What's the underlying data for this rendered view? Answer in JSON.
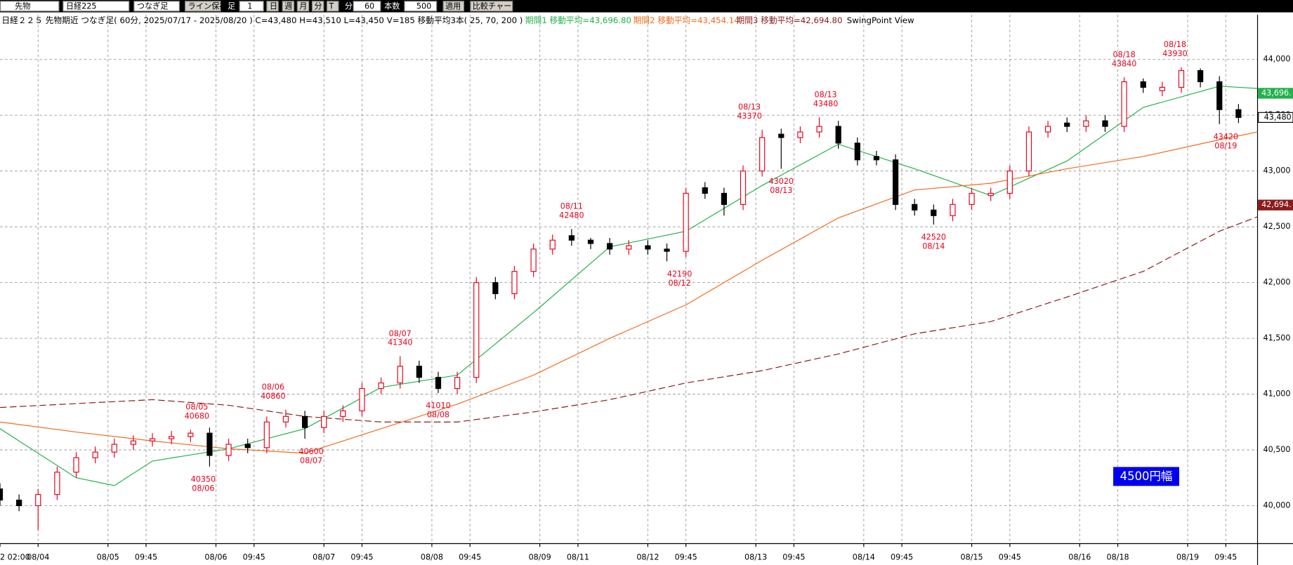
{
  "toolbar": {
    "items": [
      "先物",
      "日経225",
      "つなぎ足",
      "ライン保存",
      "足",
      "1",
      "日",
      "週",
      "月",
      "分",
      "T",
      "分",
      "60",
      "本数",
      "500",
      "適用",
      "比較チャート"
    ]
  },
  "chart_data": {
    "type": "candlestick",
    "header": [
      {
        "text": "日経２２５ 先物期近 つなぎ足( 60分, 2025/07/17 - 2025/08/20 )  C=43,480 H=43,510 L=43,450 V=185   移動平均3本( 25, 70, 200 )",
        "color": "#000000"
      },
      {
        "text": "期間1 移動平均=43,696.80",
        "color": "#22b14c"
      },
      {
        "text": "期間2 移動平均=43,454.14",
        "color": "#f26b1d"
      },
      {
        "text": "期間3 移動平均=42,694.80",
        "color": "#8b1a1a"
      },
      {
        "text": "SwingPoint View",
        "color": "#000000"
      }
    ],
    "xlim": [
      0,
      198
    ],
    "ylim": [
      39660,
      44400
    ],
    "grid": true,
    "xticks": [
      {
        "value": 0,
        "label": "2 02:00"
      },
      {
        "value": 6,
        "label": "08/04"
      },
      {
        "value": 17,
        "label": "08/05"
      },
      {
        "value": 23,
        "label": "09:45"
      },
      {
        "value": 34,
        "label": "08/06"
      },
      {
        "value": 40,
        "label": "09:45"
      },
      {
        "value": 51,
        "label": "08/07"
      },
      {
        "value": 57,
        "label": "09:45"
      },
      {
        "value": 68,
        "label": "08/08"
      },
      {
        "value": 74,
        "label": "09:45"
      },
      {
        "value": 85,
        "label": "08/09"
      },
      {
        "value": 91,
        "label": "08/11"
      },
      {
        "value": 102,
        "label": "08/12"
      },
      {
        "value": 108,
        "label": "09:45"
      },
      {
        "value": 119,
        "label": "08/13"
      },
      {
        "value": 125,
        "label": "09:45"
      },
      {
        "value": 136,
        "label": "08/14"
      },
      {
        "value": 142,
        "label": "09:45"
      },
      {
        "value": 153,
        "label": "08/15"
      },
      {
        "value": 159,
        "label": "09:45"
      },
      {
        "value": 170,
        "label": "08/16"
      },
      {
        "value": 176,
        "label": "08/18"
      },
      {
        "value": 187,
        "label": "08/19"
      },
      {
        "value": 193,
        "label": "09:45"
      }
    ],
    "yticks": [
      {
        "value": 40000,
        "label": "40,000"
      },
      {
        "value": 40500,
        "label": "40,500"
      },
      {
        "value": 41000,
        "label": "41,000"
      },
      {
        "value": 41500,
        "label": "41,500"
      },
      {
        "value": 42000,
        "label": "42,000"
      },
      {
        "value": 42500,
        "label": "42,500"
      },
      {
        "value": 43000,
        "label": "43,000"
      },
      {
        "value": 43500,
        "label": "43,500"
      },
      {
        "value": 44000,
        "label": "44,000"
      }
    ],
    "up_color": "#e8001c",
    "down_color": "#000000",
    "candles": {
      "x": [
        0,
        3,
        6,
        9,
        12,
        15,
        18,
        21,
        24,
        27,
        30,
        33,
        36,
        39,
        42,
        45,
        48,
        51,
        54,
        57,
        60,
        63,
        66,
        69,
        72,
        75,
        78,
        81,
        84,
        87,
        90,
        93,
        96,
        99,
        102,
        105,
        108,
        111,
        114,
        117,
        120,
        123,
        126,
        129,
        132,
        135,
        138,
        141,
        144,
        147,
        150,
        153,
        156,
        159,
        162,
        165,
        168,
        171,
        174,
        177,
        180,
        183,
        186,
        189,
        192,
        195
      ],
      "open": [
        40150,
        40050,
        40000,
        40100,
        40300,
        40430,
        40480,
        40550,
        40580,
        40600,
        40620,
        40650,
        40450,
        40550,
        40520,
        40750,
        40800,
        40700,
        40800,
        40850,
        41050,
        41100,
        41250,
        41150,
        41050,
        41150,
        42000,
        41900,
        42100,
        42300,
        42420,
        42380,
        42350,
        42300,
        42330,
        42300,
        42280,
        42850,
        42800,
        42700,
        43000,
        43330,
        43300,
        43350,
        43400,
        43250,
        43130,
        43100,
        42700,
        42650,
        42600,
        42700,
        42780,
        42800,
        43000,
        43350,
        43430,
        43400,
        43450,
        43400,
        43800,
        43720,
        43750,
        43900,
        43800,
        43550
      ],
      "high": [
        40200,
        40100,
        40150,
        40350,
        40480,
        40530,
        40600,
        40630,
        40650,
        40670,
        40680,
        40700,
        40600,
        40600,
        40800,
        40860,
        40850,
        40850,
        40900,
        41100,
        41150,
        41340,
        41300,
        41200,
        41200,
        42050,
        42050,
        42150,
        42350,
        42430,
        42480,
        42400,
        42400,
        42380,
        42380,
        42350,
        42850,
        42900,
        42850,
        43050,
        43370,
        43380,
        43400,
        43480,
        43450,
        43300,
        43180,
        43150,
        42750,
        42700,
        42750,
        42850,
        42850,
        43050,
        43400,
        43450,
        43480,
        43500,
        43500,
        43840,
        43830,
        43800,
        43930,
        43920,
        43850,
        43600
      ],
      "low": [
        40000,
        39950,
        39780,
        40050,
        40250,
        40380,
        40430,
        40500,
        40530,
        40550,
        40570,
        40350,
        40400,
        40470,
        40470,
        40700,
        40600,
        40650,
        40750,
        40800,
        41000,
        41050,
        41100,
        41010,
        41000,
        41100,
        41850,
        41850,
        42050,
        42250,
        42330,
        42300,
        42250,
        42250,
        42250,
        42190,
        42230,
        42750,
        42600,
        42650,
        42950,
        43020,
        43250,
        43300,
        43200,
        43050,
        43050,
        42650,
        42600,
        42520,
        42550,
        42650,
        42730,
        42750,
        42950,
        43300,
        43350,
        43350,
        43350,
        43350,
        43700,
        43670,
        43700,
        43750,
        43420,
        43430
      ],
      "close": [
        40050,
        40000,
        40100,
        40300,
        40430,
        40480,
        40550,
        40580,
        40600,
        40620,
        40650,
        40450,
        40550,
        40520,
        40750,
        40800,
        40700,
        40800,
        40850,
        41050,
        41100,
        41250,
        41150,
        41050,
        41150,
        42000,
        41900,
        42100,
        42300,
        42380,
        42380,
        42350,
        42300,
        42330,
        42300,
        42280,
        42800,
        42800,
        42700,
        43000,
        43300,
        43300,
        43350,
        43400,
        43250,
        43100,
        43100,
        42700,
        42650,
        42600,
        42700,
        42800,
        42800,
        43000,
        43350,
        43400,
        43400,
        43450,
        43400,
        43800,
        43750,
        43750,
        43900,
        43800,
        43550,
        43480
      ]
    },
    "series": [
      {
        "color": "#22b14c",
        "dashed": false,
        "x": [
          0,
          12,
          18,
          24,
          36,
          48,
          60,
          72,
          84,
          96,
          108,
          120,
          132,
          144,
          156,
          168,
          180,
          192,
          198
        ],
        "values": [
          40690,
          40250,
          40180,
          40400,
          40510,
          40690,
          41060,
          41170,
          41730,
          42320,
          42460,
          42870,
          43240,
          43020,
          42780,
          43090,
          43570,
          43760,
          43740
        ]
      },
      {
        "color": "#f26b1d",
        "dashed": false,
        "x": [
          0,
          12,
          24,
          36,
          48,
          60,
          72,
          84,
          96,
          108,
          120,
          132,
          144,
          156,
          168,
          180,
          192,
          198
        ],
        "values": [
          40750,
          40660,
          40580,
          40510,
          40470,
          40690,
          40910,
          41170,
          41500,
          41800,
          42200,
          42580,
          42830,
          42890,
          43020,
          43130,
          43280,
          43350
        ]
      },
      {
        "color": "#8b1a1a",
        "dashed": true,
        "x": [
          0,
          24,
          36,
          48,
          60,
          72,
          84,
          96,
          108,
          120,
          132,
          144,
          156,
          168,
          180,
          192,
          198
        ],
        "values": [
          40880,
          40950,
          40900,
          40800,
          40750,
          40750,
          40840,
          40950,
          41100,
          41210,
          41360,
          41540,
          41650,
          41870,
          42100,
          42460,
          42590
        ]
      }
    ],
    "swing_points": [
      {
        "x": 31,
        "price": 40680,
        "date": "08/05",
        "kind": "high"
      },
      {
        "x": 32,
        "price": 40350,
        "date": "08/06",
        "kind": "low"
      },
      {
        "x": 43,
        "price": 40860,
        "date": "08/06",
        "kind": "high"
      },
      {
        "x": 49,
        "price": 40600,
        "date": "08/07",
        "kind": "low"
      },
      {
        "x": 63,
        "price": 41340,
        "date": "08/07",
        "kind": "high"
      },
      {
        "x": 69,
        "price": 41010,
        "date": "08/08",
        "kind": "low"
      },
      {
        "x": 90,
        "price": 42480,
        "date": "08/11",
        "kind": "high"
      },
      {
        "x": 107,
        "price": 42190,
        "date": "08/12",
        "kind": "low"
      },
      {
        "x": 118,
        "price": 43370,
        "date": "08/13",
        "kind": "high"
      },
      {
        "x": 123,
        "price": 43020,
        "date": "08/13",
        "kind": "low"
      },
      {
        "x": 130,
        "price": 43480,
        "date": "08/13",
        "kind": "high"
      },
      {
        "x": 147,
        "price": 42520,
        "date": "08/14",
        "kind": "low"
      },
      {
        "x": 177,
        "price": 43840,
        "date": "08/18",
        "kind": "high"
      },
      {
        "x": 185,
        "price": 43930,
        "date": "08/18",
        "kind": "high"
      },
      {
        "x": 193,
        "price": 43420,
        "date": "08/19",
        "kind": "low"
      }
    ],
    "swing_color": "#e8001c",
    "price_tags": [
      {
        "value": 43696.8,
        "label": "43,696.",
        "color": "#22b14c",
        "text_color": "#ffffff"
      },
      {
        "value": 43480,
        "label": "43,480",
        "color": "#ffffff",
        "text_color": "#000000"
      },
      {
        "value": 42694.8,
        "label": "42,694.",
        "color": "#8b1a1a",
        "text_color": "#ffffff"
      }
    ],
    "range_label": "4500円幅"
  }
}
